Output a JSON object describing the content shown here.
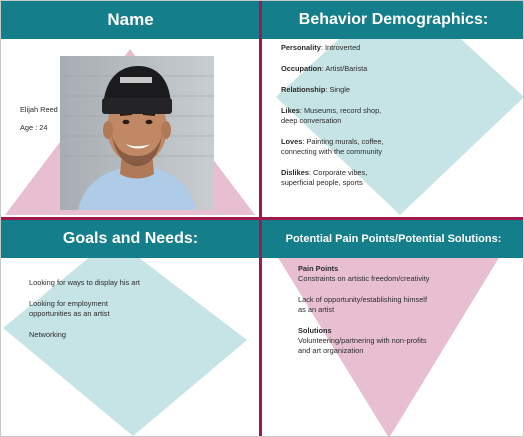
{
  "colors": {
    "header_bg": "#147e8a",
    "header_text": "#ffffff",
    "divider": "#a3174f",
    "pink_shape": "#e8bfd0",
    "teal_shape": "#c6e3e6"
  },
  "name_section": {
    "header": "Name",
    "person_name": "Elijah Reed",
    "age": "Age : 24",
    "photo_icon": "portrait-photo"
  },
  "behavior_section": {
    "header": "Behavior Demographics:",
    "items": [
      {
        "label": "Personality",
        "value": ": Introverted"
      },
      {
        "label": "Occupation",
        "value": ": Artist/Barista"
      },
      {
        "label": "Relationship",
        "value": ": Single"
      },
      {
        "label": "Likes",
        "value": ": Museums, record shop,",
        "value2": "deep conversation"
      },
      {
        "label": "Loves",
        "value": ": Painting murals, coffee,",
        "value2": "connecting with the community"
      },
      {
        "label": "Dislikes",
        "value": ": Corporate vibes,",
        "value2": "superficial people, sports"
      }
    ]
  },
  "goals_section": {
    "header": "Goals and Needs:",
    "items": [
      {
        "line1": "Looking for ways to display his art"
      },
      {
        "line1": "Looking for employment",
        "line2": "opportunities as an artist"
      },
      {
        "line1": "Networking"
      }
    ]
  },
  "pain_section": {
    "header": "Potential Pain Points/Potential Solutions:",
    "pain_title": "Pain Points",
    "pain_items": [
      {
        "line1": "Constraints on artistic freedom/creativity"
      },
      {
        "line1": "Lack of opportunity/establishing himself",
        "line2": "as an artist"
      }
    ],
    "solutions_title": "Solutions",
    "solutions_items": [
      {
        "line1": "Volunteering/partnering with non-profits",
        "line2": "and art organization"
      }
    ]
  }
}
